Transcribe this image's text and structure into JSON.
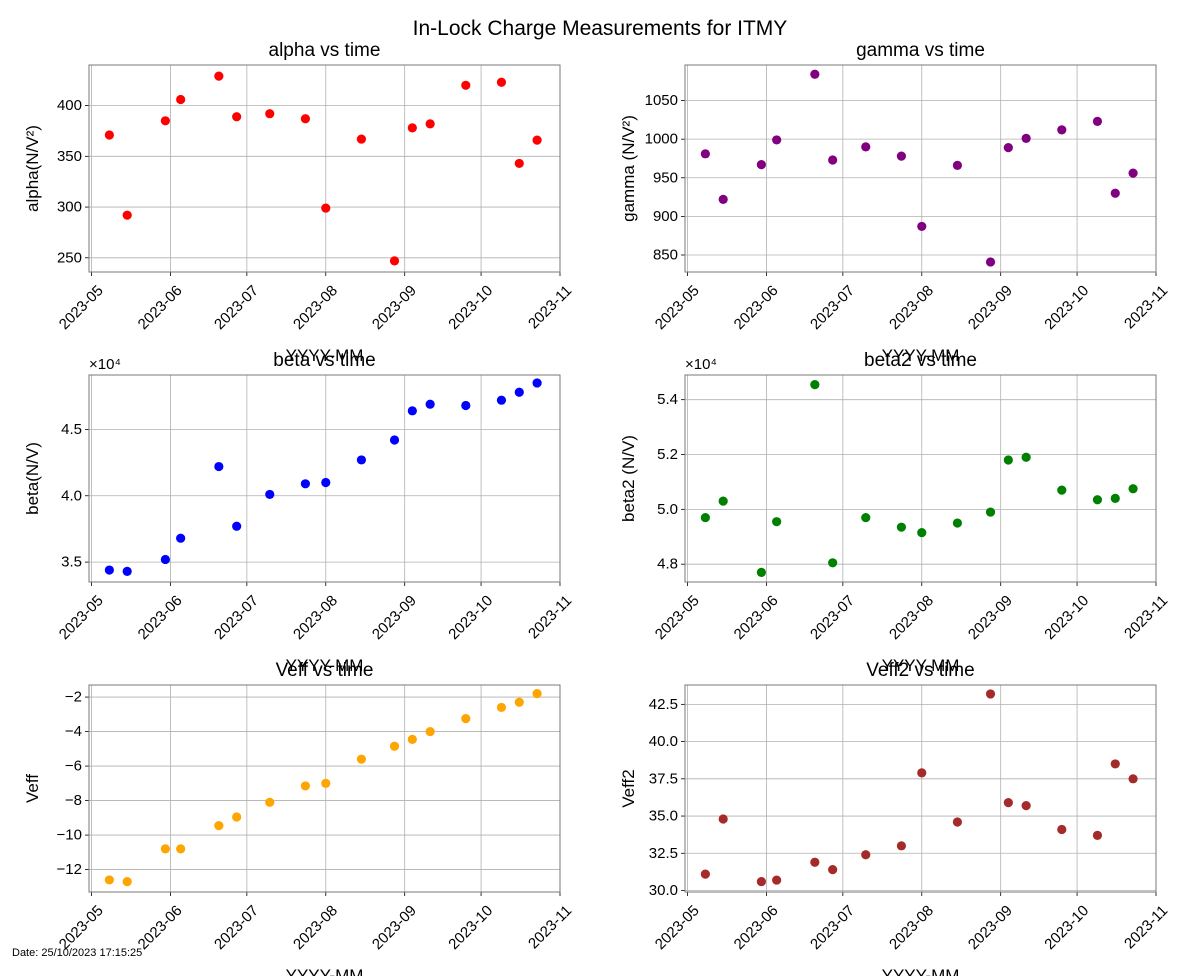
{
  "figure": {
    "title": "In-Lock Charge Measurements for ITMY",
    "footer": "Date: 25/10/2023 17:15:25"
  },
  "chart_data": [
    {
      "type": "scatter",
      "title": "alpha vs time",
      "xlabel": "YYYY-MM",
      "ylabel": "alpha(N/V²)",
      "multiplier": "",
      "color": "#ff0000",
      "x": [
        "2023-05-08",
        "2023-05-15",
        "2023-05-30",
        "2023-06-05",
        "2023-06-20",
        "2023-06-27",
        "2023-07-10",
        "2023-07-24",
        "2023-08-01",
        "2023-08-15",
        "2023-08-28",
        "2023-09-04",
        "2023-09-11",
        "2023-09-25",
        "2023-10-09",
        "2023-10-16",
        "2023-10-23"
      ],
      "y": [
        371,
        292,
        385,
        406,
        429,
        389,
        392,
        387,
        299,
        367,
        247,
        378,
        382,
        420,
        423,
        343,
        366
      ],
      "xlim": [
        "2023-04-30",
        "2023-11-01"
      ],
      "ylim": [
        236,
        440
      ],
      "yticks": [
        250,
        300,
        350,
        400
      ],
      "yticklabels": [
        "250",
        "300",
        "350",
        "400"
      ],
      "xticks": [
        "2023-05-01",
        "2023-06-01",
        "2023-07-01",
        "2023-08-01",
        "2023-09-01",
        "2023-10-01",
        "2023-11-01"
      ],
      "xticklabels": [
        "2023-05",
        "2023-06",
        "2023-07",
        "2023-08",
        "2023-09",
        "2023-10",
        "2023-11"
      ],
      "grid": true
    },
    {
      "type": "scatter",
      "title": "gamma vs time",
      "xlabel": "YYYY-MM",
      "ylabel": "gamma (N/V²)",
      "multiplier": "",
      "color": "#800080",
      "x": [
        "2023-05-08",
        "2023-05-15",
        "2023-05-30",
        "2023-06-05",
        "2023-06-20",
        "2023-06-27",
        "2023-07-10",
        "2023-07-24",
        "2023-08-01",
        "2023-08-15",
        "2023-08-28",
        "2023-09-04",
        "2023-09-11",
        "2023-09-25",
        "2023-10-09",
        "2023-10-16",
        "2023-10-23"
      ],
      "y": [
        981,
        922,
        967,
        999,
        1084,
        973,
        990,
        978,
        887,
        966,
        841,
        989,
        1001,
        1012,
        1023,
        930,
        956
      ],
      "xlim": [
        "2023-04-30",
        "2023-11-01"
      ],
      "ylim": [
        828,
        1096
      ],
      "yticks": [
        850,
        900,
        950,
        1000,
        1050
      ],
      "yticklabels": [
        "850",
        "900",
        "950",
        "1000",
        "1050"
      ],
      "xticks": [
        "2023-05-01",
        "2023-06-01",
        "2023-07-01",
        "2023-08-01",
        "2023-09-01",
        "2023-10-01",
        "2023-11-01"
      ],
      "xticklabels": [
        "2023-05",
        "2023-06",
        "2023-07",
        "2023-08",
        "2023-09",
        "2023-10",
        "2023-11"
      ],
      "grid": true
    },
    {
      "type": "scatter",
      "title": "beta vs time",
      "xlabel": "YYYY-MM",
      "ylabel": "beta(N/V)",
      "multiplier": "×10⁴",
      "color": "#0000ff",
      "x": [
        "2023-05-08",
        "2023-05-15",
        "2023-05-30",
        "2023-06-05",
        "2023-06-20",
        "2023-06-27",
        "2023-07-10",
        "2023-07-24",
        "2023-08-01",
        "2023-08-15",
        "2023-08-28",
        "2023-09-04",
        "2023-09-11",
        "2023-09-25",
        "2023-10-09",
        "2023-10-16",
        "2023-10-23"
      ],
      "y": [
        3.44,
        3.43,
        3.52,
        3.68,
        4.22,
        3.77,
        4.01,
        4.09,
        4.1,
        4.27,
        4.42,
        4.64,
        4.69,
        4.68,
        4.72,
        4.78,
        4.85
      ],
      "xlim": [
        "2023-04-30",
        "2023-11-01"
      ],
      "ylim": [
        3.35,
        4.91
      ],
      "yticks": [
        3.5,
        4.0,
        4.5
      ],
      "yticklabels": [
        "3.5",
        "4.0",
        "4.5"
      ],
      "xticks": [
        "2023-05-01",
        "2023-06-01",
        "2023-07-01",
        "2023-08-01",
        "2023-09-01",
        "2023-10-01",
        "2023-11-01"
      ],
      "xticklabels": [
        "2023-05",
        "2023-06",
        "2023-07",
        "2023-08",
        "2023-09",
        "2023-10",
        "2023-11"
      ],
      "grid": true
    },
    {
      "type": "scatter",
      "title": "beta2 vs time",
      "xlabel": "YYYY-MM",
      "ylabel": "beta2 (N/V)",
      "multiplier": "×10⁴",
      "color": "#008000",
      "x": [
        "2023-05-08",
        "2023-05-15",
        "2023-05-30",
        "2023-06-05",
        "2023-06-20",
        "2023-06-27",
        "2023-07-10",
        "2023-07-24",
        "2023-08-01",
        "2023-08-15",
        "2023-08-28",
        "2023-09-04",
        "2023-09-11",
        "2023-09-25",
        "2023-10-09",
        "2023-10-16",
        "2023-10-23"
      ],
      "y": [
        4.97,
        5.03,
        4.77,
        4.955,
        5.455,
        4.805,
        4.97,
        4.935,
        4.915,
        4.95,
        4.99,
        5.18,
        5.19,
        5.07,
        5.035,
        5.04,
        5.075
      ],
      "xlim": [
        "2023-04-30",
        "2023-11-01"
      ],
      "ylim": [
        4.735,
        5.49
      ],
      "yticks": [
        4.8,
        5.0,
        5.2,
        5.4
      ],
      "yticklabels": [
        "4.8",
        "5.0",
        "5.2",
        "5.4"
      ],
      "xticks": [
        "2023-05-01",
        "2023-06-01",
        "2023-07-01",
        "2023-08-01",
        "2023-09-01",
        "2023-10-01",
        "2023-11-01"
      ],
      "xticklabels": [
        "2023-05",
        "2023-06",
        "2023-07",
        "2023-08",
        "2023-09",
        "2023-10",
        "2023-11"
      ],
      "grid": true
    },
    {
      "type": "scatter",
      "title": "Veff vs time",
      "xlabel": "YYYY-MM",
      "ylabel": "Veff",
      "multiplier": "",
      "color": "#ffa500",
      "x": [
        "2023-05-08",
        "2023-05-15",
        "2023-05-30",
        "2023-06-05",
        "2023-06-20",
        "2023-06-27",
        "2023-07-10",
        "2023-07-24",
        "2023-08-01",
        "2023-08-15",
        "2023-08-28",
        "2023-09-04",
        "2023-09-11",
        "2023-09-25",
        "2023-10-09",
        "2023-10-16",
        "2023-10-23"
      ],
      "y": [
        -12.6,
        -12.7,
        -10.8,
        -10.8,
        -9.45,
        -8.95,
        -8.1,
        -7.15,
        -7.0,
        -5.6,
        -4.85,
        -4.45,
        -4.0,
        -3.25,
        -2.6,
        -2.3,
        -1.8
      ],
      "xlim": [
        "2023-04-30",
        "2023-11-01"
      ],
      "ylim": [
        -13.3,
        -1.3
      ],
      "yticks": [
        -12,
        -10,
        -8,
        -6,
        -4,
        -2
      ],
      "yticklabels": [
        "−12",
        "−10",
        "−8",
        "−6",
        "−4",
        "−2"
      ],
      "xticks": [
        "2023-05-01",
        "2023-06-01",
        "2023-07-01",
        "2023-08-01",
        "2023-09-01",
        "2023-10-01",
        "2023-11-01"
      ],
      "xticklabels": [
        "2023-05",
        "2023-06",
        "2023-07",
        "2023-08",
        "2023-09",
        "2023-10",
        "2023-11"
      ],
      "grid": true
    },
    {
      "type": "scatter",
      "title": "Veff2 vs time",
      "xlabel": "YYYY-MM",
      "ylabel": "Veff2",
      "multiplier": "",
      "color": "#a52a2a",
      "x": [
        "2023-05-08",
        "2023-05-15",
        "2023-05-30",
        "2023-06-05",
        "2023-06-20",
        "2023-06-27",
        "2023-07-10",
        "2023-07-24",
        "2023-08-01",
        "2023-08-15",
        "2023-08-28",
        "2023-09-04",
        "2023-09-11",
        "2023-09-25",
        "2023-10-09",
        "2023-10-16",
        "2023-10-23"
      ],
      "y": [
        31.1,
        34.8,
        30.6,
        30.7,
        31.9,
        31.4,
        32.4,
        33.0,
        37.9,
        34.6,
        43.2,
        35.9,
        35.7,
        34.1,
        33.7,
        38.5,
        37.5
      ],
      "xlim": [
        "2023-04-30",
        "2023-11-01"
      ],
      "ylim": [
        29.9,
        43.8
      ],
      "yticks": [
        30.0,
        32.5,
        35.0,
        37.5,
        40.0,
        42.5
      ],
      "yticklabels": [
        "30.0",
        "32.5",
        "35.0",
        "37.5",
        "40.0",
        "42.5"
      ],
      "xticks": [
        "2023-05-01",
        "2023-06-01",
        "2023-07-01",
        "2023-08-01",
        "2023-09-01",
        "2023-10-01",
        "2023-11-01"
      ],
      "xticklabels": [
        "2023-05",
        "2023-06",
        "2023-07",
        "2023-08",
        "2023-09",
        "2023-10",
        "2023-11"
      ],
      "grid": true
    }
  ]
}
